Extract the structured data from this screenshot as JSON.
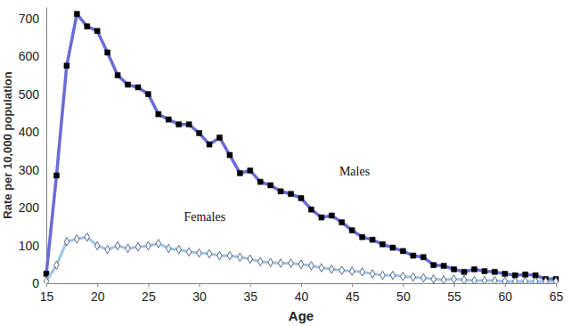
{
  "chart_data": {
    "type": "line",
    "xlabel": "Age",
    "ylabel": "Rate per 10,000 population",
    "x": [
      15,
      16,
      17,
      18,
      19,
      20,
      21,
      22,
      23,
      24,
      25,
      26,
      27,
      28,
      29,
      30,
      31,
      32,
      33,
      34,
      35,
      36,
      37,
      38,
      39,
      40,
      41,
      42,
      43,
      44,
      45,
      46,
      47,
      48,
      49,
      50,
      51,
      52,
      53,
      54,
      55,
      56,
      57,
      58,
      59,
      60,
      61,
      62,
      63,
      64,
      65
    ],
    "xlim": [
      15,
      65
    ],
    "xticks": [
      15,
      20,
      25,
      30,
      35,
      40,
      45,
      50,
      55,
      60,
      65
    ],
    "ylim": [
      0,
      730
    ],
    "yticks": [
      0,
      100,
      200,
      300,
      400,
      500,
      600,
      700
    ],
    "grid": false,
    "series": [
      {
        "name": "Males",
        "color": "#6b6bd8",
        "marker": "square",
        "line_style": "solid",
        "values": [
          25,
          285,
          575,
          712,
          679,
          667,
          610,
          550,
          525,
          518,
          500,
          447,
          433,
          420,
          420,
          397,
          367,
          385,
          339,
          291,
          298,
          268,
          259,
          243,
          236,
          225,
          195,
          174,
          179,
          161,
          140,
          122,
          115,
          103,
          94,
          85,
          73,
          69,
          48,
          46,
          37,
          30,
          37,
          32,
          30,
          25,
          21,
          23,
          21,
          11,
          11
        ]
      },
      {
        "name": "Females",
        "color": "#9ec4e8",
        "marker": "diamond",
        "line_style": "solid",
        "values": [
          5,
          48,
          110,
          117,
          122,
          99,
          89,
          99,
          92,
          96,
          99,
          105,
          92,
          89,
          83,
          80,
          78,
          73,
          73,
          69,
          64,
          57,
          55,
          53,
          53,
          50,
          46,
          41,
          37,
          34,
          32,
          30,
          25,
          21,
          21,
          18,
          16,
          14,
          11,
          9,
          11,
          9,
          7,
          7,
          7,
          5,
          5,
          5,
          5,
          5,
          5
        ]
      }
    ]
  }
}
